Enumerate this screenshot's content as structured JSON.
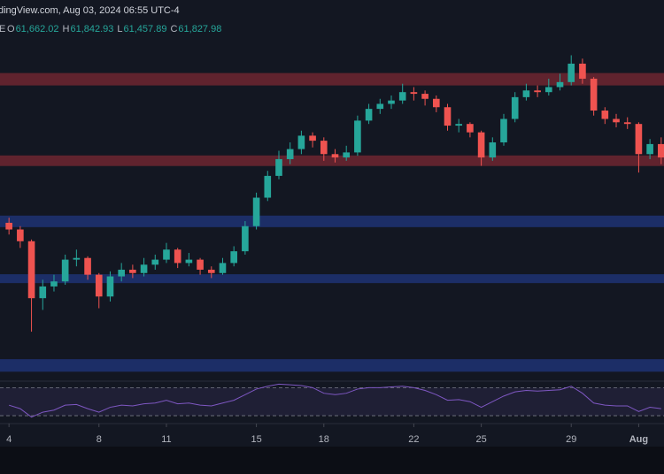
{
  "chart_data": {
    "type": "candlestick",
    "header": "dingView.com, Aug 03, 2024 06:55 UTC-4",
    "symbol": "E",
    "ohlc_legend": [
      {
        "label": "O",
        "value": "61,662.02"
      },
      {
        "label": "H",
        "value": "61,842.93"
      },
      {
        "label": "L",
        "value": "61,457.89"
      },
      {
        "label": "C",
        "value": "61,827.98"
      }
    ],
    "up_color": "#26a69a",
    "down_color": "#ef5350",
    "x": [
      2,
      3,
      4,
      5,
      6,
      7,
      8,
      9,
      10,
      11,
      12,
      13,
      14,
      15,
      16,
      17,
      18,
      19,
      20,
      21,
      22,
      23,
      24,
      25,
      26,
      27,
      28,
      29,
      30,
      31,
      32,
      33,
      34,
      35,
      36,
      37,
      38,
      39,
      40,
      41,
      42,
      43,
      44,
      45,
      46,
      47,
      48,
      49,
      50,
      51,
      52,
      53,
      54,
      55,
      56,
      57,
      58,
      59,
      60
    ],
    "open": [
      60000,
      59600,
      58900,
      55500,
      56200,
      56500,
      57800,
      57900,
      56900,
      55600,
      56800,
      57200,
      57000,
      57500,
      57800,
      58400,
      57600,
      57800,
      57200,
      57000,
      57600,
      58300,
      59800,
      61500,
      62800,
      63800,
      64400,
      65200,
      64900,
      64100,
      63900,
      64200,
      66100,
      66800,
      67100,
      67300,
      67800,
      67700,
      67400,
      66900,
      65800,
      65900,
      65400,
      63900,
      64800,
      66200,
      67500,
      67900,
      67800,
      68100,
      68400,
      69500,
      68600,
      66700,
      66200,
      66000,
      65900,
      64100,
      64700
    ],
    "high": [
      60300,
      59800,
      59000,
      56600,
      56900,
      58100,
      58400,
      58000,
      57000,
      57100,
      57600,
      57500,
      57900,
      58100,
      58800,
      58500,
      58200,
      57900,
      57400,
      57900,
      58600,
      60100,
      61800,
      63100,
      64300,
      64800,
      65500,
      65400,
      65100,
      64400,
      64600,
      66400,
      67100,
      67400,
      67600,
      68300,
      68100,
      67900,
      67600,
      67100,
      66200,
      66000,
      65500,
      65100,
      66500,
      67800,
      68300,
      68200,
      68600,
      68900,
      70000,
      69800,
      68700,
      66900,
      66500,
      66300,
      66000,
      65000,
      65100
    ],
    "low": [
      59300,
      58500,
      53500,
      54800,
      55900,
      56300,
      57400,
      56600,
      54900,
      55300,
      56500,
      56700,
      56800,
      57200,
      57600,
      57300,
      57400,
      56900,
      56700,
      56900,
      57400,
      58100,
      59600,
      61300,
      62600,
      63500,
      64100,
      64500,
      63700,
      63600,
      63700,
      64000,
      65900,
      66500,
      66800,
      67100,
      67300,
      67000,
      66600,
      65500,
      65400,
      65100,
      63400,
      63700,
      64600,
      66000,
      67300,
      67500,
      67600,
      67900,
      68200,
      68300,
      66400,
      65900,
      65700,
      65600,
      63000,
      63800,
      63500
    ],
    "close": [
      59600,
      58900,
      55500,
      56200,
      56500,
      57800,
      57900,
      56900,
      55600,
      56800,
      57200,
      57000,
      57500,
      57800,
      58400,
      57600,
      57800,
      57200,
      57000,
      57600,
      58300,
      59800,
      61500,
      62800,
      63800,
      64400,
      65200,
      64900,
      64100,
      63900,
      64200,
      66100,
      66800,
      67100,
      67300,
      67800,
      67700,
      67400,
      66900,
      65800,
      65900,
      65400,
      63900,
      64800,
      66200,
      67500,
      67900,
      67800,
      68100,
      68400,
      69500,
      68600,
      66700,
      66200,
      66000,
      65900,
      64100,
      64700,
      63900
    ],
    "zones": [
      {
        "range": [
          68200,
          68940
        ],
        "color": "#6e2630"
      },
      {
        "range": [
          63390,
          64020
        ],
        "color": "#6e2630"
      },
      {
        "range": [
          59740,
          60430
        ],
        "color": "#1e3273"
      },
      {
        "range": [
          56400,
          56930
        ],
        "color": "#1e3273"
      },
      {
        "range": [
          51110,
          51860
        ],
        "color": "#1e3273"
      }
    ],
    "ylim": [
      50600,
      73300
    ],
    "xlim": [
      1.2,
      60.25
    ],
    "xticks": [
      {
        "value": 2,
        "label": "4"
      },
      {
        "value": 10,
        "label": "8"
      },
      {
        "value": 16,
        "label": "11"
      },
      {
        "value": 24,
        "label": "15"
      },
      {
        "value": 30,
        "label": "18"
      },
      {
        "value": 38,
        "label": "22"
      },
      {
        "value": 44,
        "label": "25"
      },
      {
        "value": 52,
        "label": "29"
      },
      {
        "value": 58,
        "label": "Aug"
      }
    ],
    "rsi": [
      45,
      40,
      28,
      35,
      38,
      45,
      46,
      40,
      35,
      42,
      45,
      44,
      47,
      48,
      52,
      47,
      48,
      45,
      44,
      48,
      52,
      60,
      68,
      72,
      75,
      74,
      73,
      70,
      62,
      60,
      62,
      68,
      70,
      70,
      71,
      72,
      70,
      66,
      60,
      52,
      53,
      50,
      42,
      50,
      58,
      64,
      66,
      65,
      66,
      67,
      72,
      62,
      48,
      45,
      44,
      44,
      36,
      42,
      40
    ],
    "rsi_color": "#7e57c2",
    "rsi_levels": [
      70,
      30
    ],
    "rsi_ylim": [
      20,
      78
    ]
  }
}
